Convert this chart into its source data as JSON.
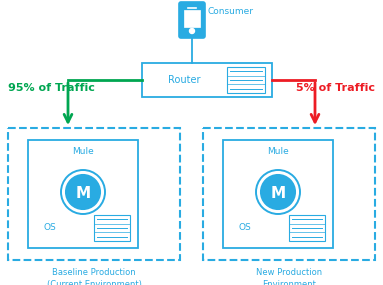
{
  "background_color": "#ffffff",
  "blue": "#29ABE2",
  "green": "#00A651",
  "red": "#ED1C24",
  "consumer_label": "Consumer",
  "router_label": "Router",
  "left_pct_label": "95% of Traffic",
  "right_pct_label": "5% of Traffic",
  "left_env_label": "Baseline Production\n(Current Environment)",
  "right_env_label": "New Production\nEnvironment",
  "mule_label": "Mule",
  "os_label": "OS",
  "fig_width": 3.83,
  "fig_height": 2.85,
  "dpi": 100
}
